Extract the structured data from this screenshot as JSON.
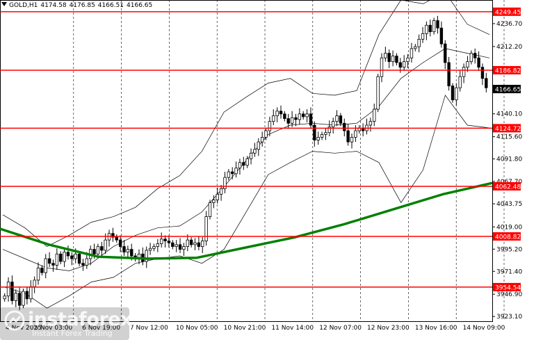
{
  "header": {
    "symbol": "GOLD,H1",
    "open": "4174.58",
    "high": "4176.85",
    "low": "4166.51",
    "close": "4166.65"
  },
  "watermark": {
    "brand": "instaforex",
    "tagline": "Instant Forex Trading"
  },
  "colors": {
    "level_line": "#ff0000",
    "ma_line": "#008000",
    "bands": "#000000",
    "current_price_box": "#000000"
  },
  "chart_data": {
    "type": "candlestick",
    "title": "",
    "y_ticks": [
      "4236.70",
      "4212.20",
      "4140.10",
      "4115.60",
      "4091.80",
      "4067.70",
      "4043.75",
      "4019.00",
      "3995.20",
      "3971.40",
      "3946.90",
      "3923.10"
    ],
    "x_labels": [
      "4 Nov 2025",
      "5 Nov 03:00",
      "6 Nov 19:00",
      "7 Nov 12:00",
      "10 Nov 05:00",
      "10 Nov 21:00",
      "11 Nov 14:00",
      "12 Nov 07:00",
      "12 Nov 23:00",
      "13 Nov 16:00",
      "14 Nov 09:00"
    ],
    "ylim": [
      3918,
      4262
    ],
    "levels": [
      {
        "label": "4249.45",
        "value": 4249.45
      },
      {
        "label": "4186.82",
        "value": 4186.82
      },
      {
        "label": "4124.72",
        "value": 4124.72
      },
      {
        "label": "4062.48",
        "value": 4062.48
      },
      {
        "label": "4008.82",
        "value": 4008.82
      },
      {
        "label": "3954.54",
        "value": 3954.54
      }
    ],
    "current_price": {
      "label": "4166.65",
      "value": 4166.65
    },
    "candles": [
      3945,
      3960,
      3940,
      3948,
      3935,
      3950,
      3942,
      3955,
      3962,
      3975,
      3970,
      3985,
      3980,
      3978,
      3990,
      3982,
      3992,
      3988,
      3985,
      3990,
      3980,
      3978,
      3985,
      3995,
      3990,
      3998,
      3994,
      4005,
      4012,
      4008,
      4005,
      3998,
      3992,
      3995,
      3988,
      3985,
      3990,
      3982,
      3994,
      3996,
      3998,
      4001,
      4006,
      4004,
      4002,
      3998,
      4000,
      3995,
      3998,
      4005,
      4000,
      4002,
      3998,
      4004,
      4030,
      4045,
      4048,
      4054,
      4060,
      4072,
      4078,
      4076,
      4082,
      4088,
      4085,
      4092,
      4098,
      4102,
      4110,
      4115,
      4122,
      4132,
      4138,
      4143,
      4140,
      4135,
      4130,
      4136,
      4134,
      4140,
      4137,
      4140,
      4128,
      4112,
      4115,
      4118,
      4120,
      4126,
      4132,
      4138,
      4130,
      4122,
      4110,
      4115,
      4122,
      4125,
      4122,
      4128,
      4132,
      4145,
      4180,
      4200,
      4205,
      4196,
      4202,
      4195,
      4190,
      4196,
      4200,
      4210,
      4212,
      4220,
      4226,
      4235,
      4228,
      4240,
      4232,
      4215,
      4195,
      4170,
      4155,
      4168,
      4180,
      4190,
      4196,
      4205,
      4200,
      4190,
      4178,
      4168
    ],
    "ma": [
      4017,
      4000,
      3987,
      3985,
      3986,
      3997,
      4008,
      4022,
      4038,
      4054,
      4066
    ],
    "bb_upper": [
      4032,
      4018,
      3998,
      4010,
      4024,
      4030,
      4040,
      4060,
      4074,
      4100,
      4142,
      4158,
      4173,
      4178,
      4162,
      4160,
      4165,
      4225,
      4262,
      4258,
      4270,
      4236,
      4225
    ],
    "bb_mid": [
      3995,
      3985,
      3975,
      3972,
      3980,
      3998,
      4010,
      4018,
      4020,
      4035,
      4062,
      4090,
      4118,
      4128,
      4130,
      4128,
      4130,
      4148,
      4178,
      4195,
      4210,
      4205,
      4200
    ],
    "bb_lower": [
      3955,
      3948,
      3932,
      3945,
      3960,
      3965,
      3980,
      3985,
      3988,
      3980,
      3995,
      4035,
      4075,
      4088,
      4100,
      4098,
      4100,
      4088,
      4045,
      4080,
      4160,
      4128,
      4125
    ]
  }
}
